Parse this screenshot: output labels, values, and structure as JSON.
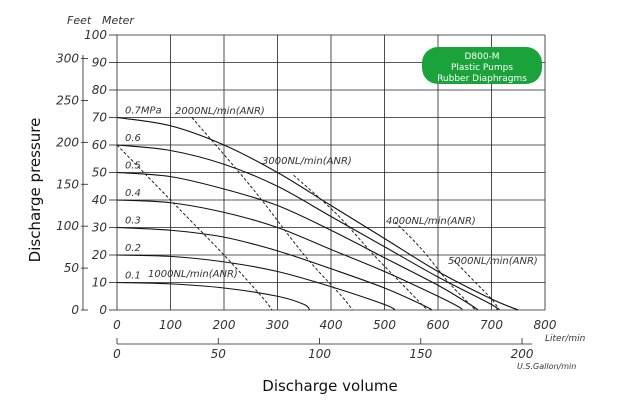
{
  "chart_data": {
    "type": "line",
    "badge": {
      "lines": [
        "D800-M",
        "Plastic Pumps",
        "Rubber Diaphragms"
      ],
      "color": "#1aa33a"
    },
    "units": {
      "head_left": "Feet",
      "head_right": "Meter",
      "x_primary": "Liter/min",
      "x_secondary": "U.S.Gallon/min"
    },
    "xlabel": "Discharge volume",
    "ylabel": "Discharge pressure",
    "xlim": [
      0,
      800
    ],
    "ylim_meter": [
      0,
      100
    ],
    "x_ticks_lpm": [
      "0",
      "100",
      "200",
      "300",
      "400",
      "500",
      "600",
      "700",
      "800"
    ],
    "x_ticks_gpm": [
      "0",
      "50",
      "100",
      "150",
      "200"
    ],
    "y_ticks_meter": [
      "0",
      "10",
      "20",
      "30",
      "40",
      "50",
      "60",
      "70",
      "80",
      "90",
      "100"
    ],
    "y_ticks_feet": [
      "0",
      "50",
      "100",
      "150",
      "200",
      "250",
      "300"
    ],
    "series": [
      {
        "name": "0.7MPa",
        "points": [
          [
            0,
            70
          ],
          [
            100,
            67
          ],
          [
            200,
            60
          ],
          [
            300,
            50
          ],
          [
            400,
            38
          ],
          [
            500,
            26
          ],
          [
            600,
            14
          ],
          [
            700,
            4
          ],
          [
            750,
            0
          ]
        ]
      },
      {
        "name": "0.6",
        "points": [
          [
            0,
            60
          ],
          [
            100,
            58
          ],
          [
            200,
            53
          ],
          [
            300,
            45
          ],
          [
            400,
            34
          ],
          [
            500,
            23
          ],
          [
            600,
            12
          ],
          [
            700,
            2
          ],
          [
            710,
            0
          ]
        ]
      },
      {
        "name": "0.5",
        "points": [
          [
            0,
            50
          ],
          [
            100,
            48.5
          ],
          [
            200,
            44
          ],
          [
            300,
            38
          ],
          [
            400,
            29
          ],
          [
            500,
            19
          ],
          [
            600,
            9
          ],
          [
            660,
            2
          ],
          [
            675,
            0
          ]
        ]
      },
      {
        "name": "0.4",
        "points": [
          [
            0,
            40
          ],
          [
            100,
            39
          ],
          [
            200,
            35.5
          ],
          [
            300,
            30
          ],
          [
            400,
            22
          ],
          [
            500,
            14
          ],
          [
            600,
            5
          ],
          [
            640,
            1
          ],
          [
            645,
            0
          ]
        ]
      },
      {
        "name": "0.3",
        "points": [
          [
            0,
            30
          ],
          [
            100,
            29
          ],
          [
            200,
            26.5
          ],
          [
            300,
            21.5
          ],
          [
            400,
            15
          ],
          [
            500,
            8
          ],
          [
            580,
            1
          ],
          [
            585,
            0
          ]
        ]
      },
      {
        "name": "0.2",
        "points": [
          [
            0,
            20
          ],
          [
            100,
            19.5
          ],
          [
            200,
            17.5
          ],
          [
            300,
            14
          ],
          [
            400,
            8.5
          ],
          [
            500,
            2
          ],
          [
            520,
            0
          ]
        ]
      },
      {
        "name": "0.1",
        "points": [
          [
            0,
            10
          ],
          [
            100,
            9.5
          ],
          [
            200,
            8
          ],
          [
            300,
            5
          ],
          [
            350,
            2
          ],
          [
            360,
            0
          ]
        ]
      }
    ],
    "air_lines": [
      {
        "name": "1000NL/min(ANR)",
        "points": [
          [
            0,
            60
          ],
          [
            100,
            40
          ],
          [
            200,
            20
          ],
          [
            270,
            5
          ],
          [
            290,
            0
          ]
        ]
      },
      {
        "name": "2000NL/min(ANR)",
        "points": [
          [
            140,
            70
          ],
          [
            250,
            45
          ],
          [
            350,
            20
          ],
          [
            420,
            5
          ],
          [
            440,
            0
          ]
        ]
      },
      {
        "name": "3000NL/min(ANR)",
        "points": [
          [
            330,
            49
          ],
          [
            410,
            35
          ],
          [
            480,
            20
          ],
          [
            540,
            8
          ],
          [
            580,
            0
          ]
        ]
      },
      {
        "name": "4000NL/min(ANR)",
        "points": [
          [
            520,
            32
          ],
          [
            570,
            22
          ],
          [
            620,
            10
          ],
          [
            660,
            2
          ],
          [
            670,
            0
          ]
        ]
      },
      {
        "name": "5000NL/min(ANR)",
        "points": [
          [
            630,
            18
          ],
          [
            670,
            10
          ],
          [
            700,
            4
          ],
          [
            715,
            0
          ]
        ]
      }
    ]
  }
}
